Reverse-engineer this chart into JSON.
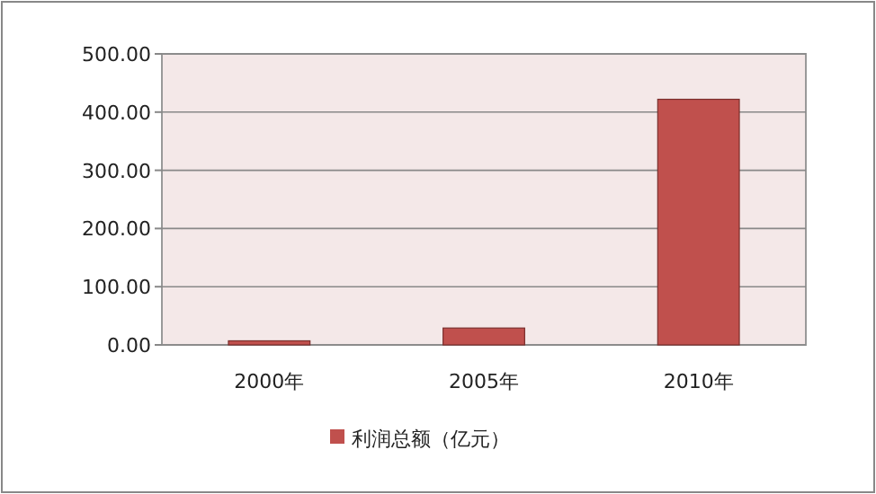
{
  "chart_data": {
    "type": "bar",
    "categories": [
      "2000年",
      "2005年",
      "2010年"
    ],
    "series": [
      {
        "name": "利润总额（亿元）",
        "color": "#c0504d",
        "values": [
          7,
          29,
          422
        ]
      }
    ],
    "ylim": [
      0,
      500
    ],
    "yticks": [
      {
        "value": 0,
        "label": "0.00"
      },
      {
        "value": 100,
        "label": "100.00"
      },
      {
        "value": 200,
        "label": "200.00"
      },
      {
        "value": 300,
        "label": "300.00"
      },
      {
        "value": 400,
        "label": "400.00"
      },
      {
        "value": 500,
        "label": "500.00"
      }
    ],
    "grid": "y",
    "legend": "bottom"
  }
}
